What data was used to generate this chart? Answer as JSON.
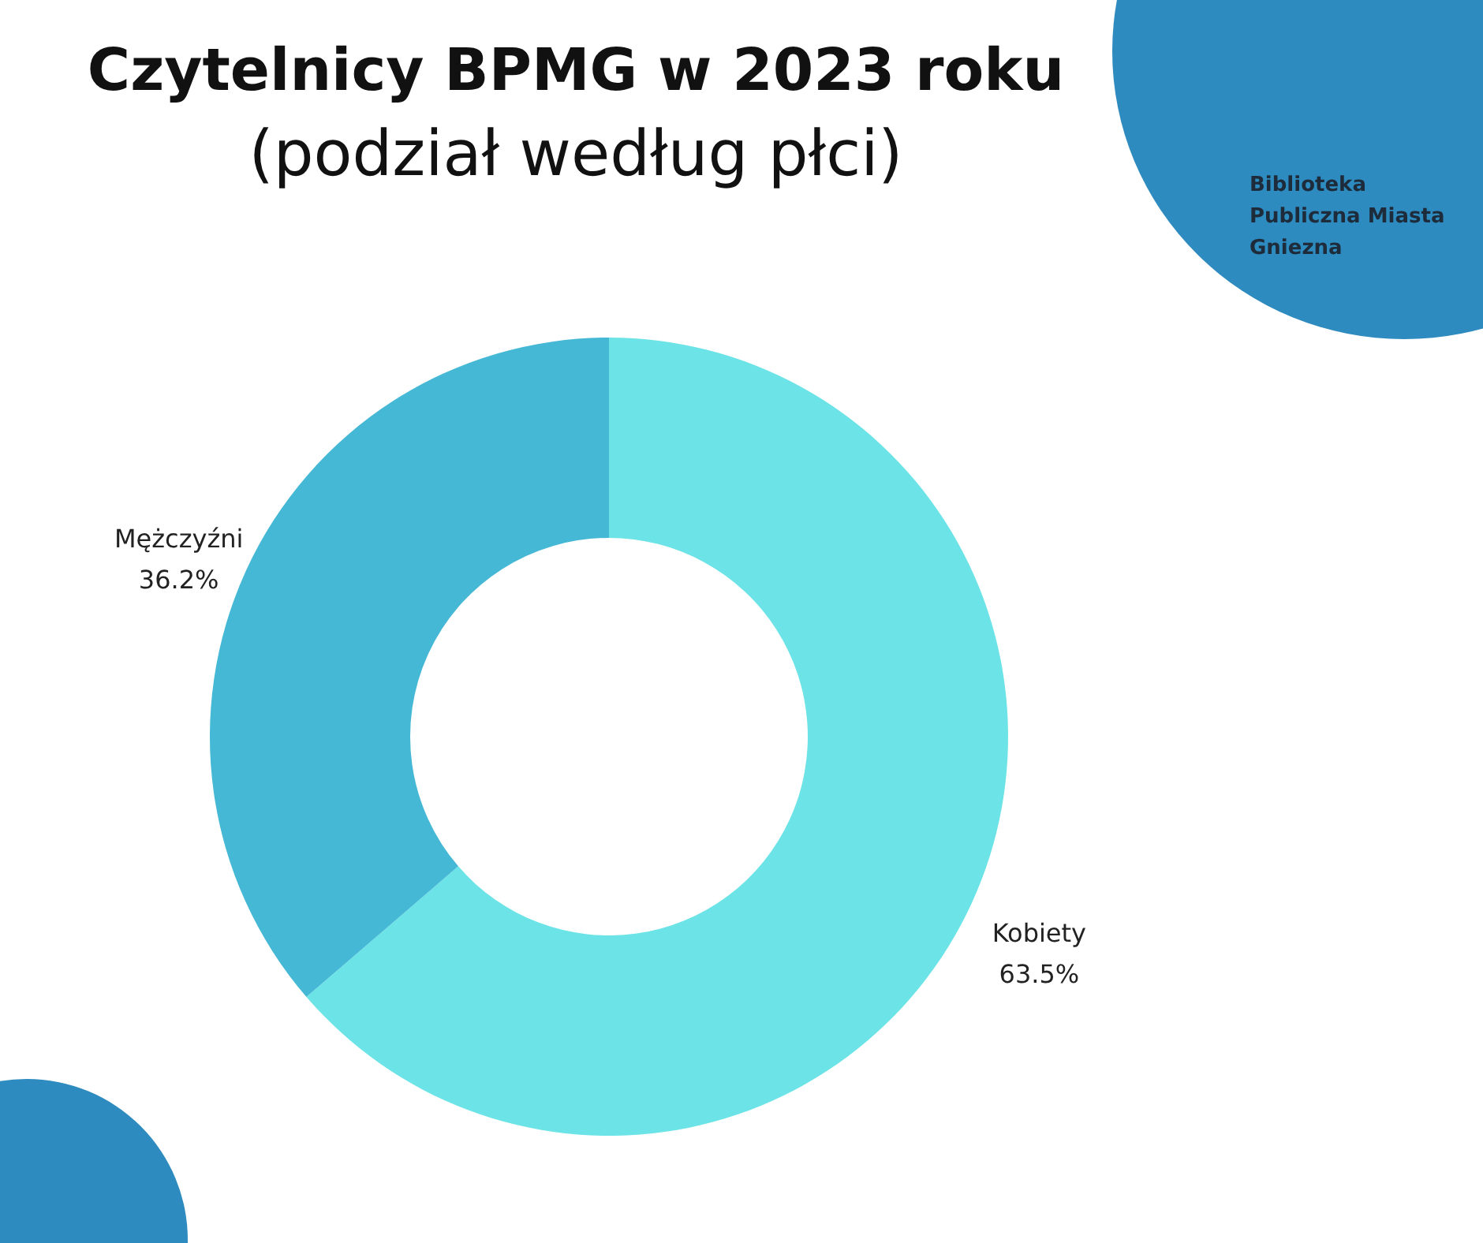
{
  "chart_data": {
    "type": "donut",
    "title": "Czytelnicy BPMG w 2023 roku",
    "subtitle": "(podział według płci)",
    "categories": [
      "Kobiety",
      "Mężczyźni"
    ],
    "values": [
      63.5,
      36.2
    ],
    "colors": [
      "#6ce3e6",
      "#45b8d6"
    ],
    "value_labels": [
      "63.5%",
      "36.2%"
    ],
    "annotations": [
      "Biblioteka Publiczna Miasta Gniezna"
    ]
  }
}
